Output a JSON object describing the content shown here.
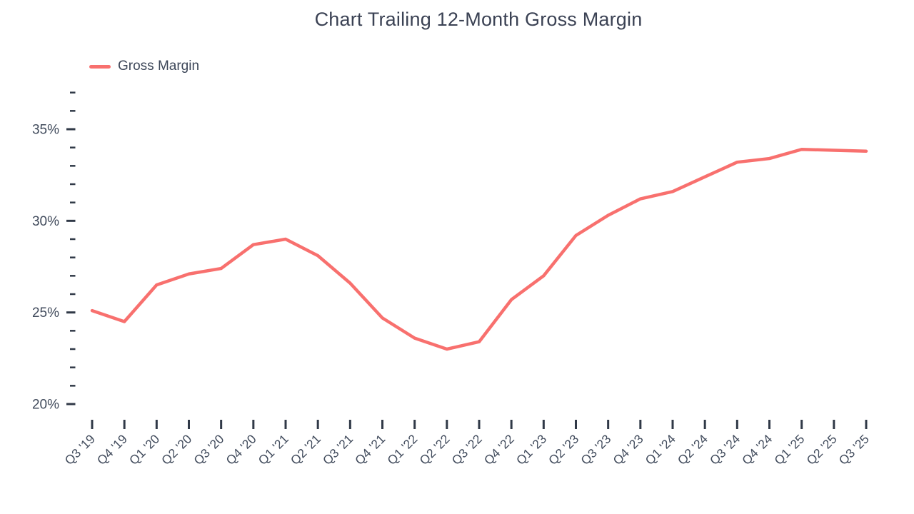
{
  "title": "Chart Trailing 12-Month Gross Margin",
  "legend": {
    "label": "Gross Margin"
  },
  "colors": {
    "line": "#F8706E",
    "title_text": "#3B4254",
    "axis_text": "#414B5C",
    "tick": "#303947"
  },
  "y_axis": {
    "unit": "%",
    "labeled_ticks": [
      "20%",
      "25%",
      "30%",
      "35%"
    ],
    "minor_tick_step": 1,
    "major_tick_step": 5,
    "min": 20,
    "max": 37
  },
  "chart_data": {
    "type": "line",
    "title": "Chart Trailing 12-Month Gross Margin",
    "categories": [
      "Q3 '19",
      "Q4 '19",
      "Q1 '20",
      "Q2 '20",
      "Q3 '20",
      "Q4 '20",
      "Q1 '21",
      "Q2 '21",
      "Q3 '21",
      "Q4 '21",
      "Q1 '22",
      "Q2 '22",
      "Q3 '22",
      "Q4 '22",
      "Q1 '23",
      "Q2 '23",
      "Q3 '23",
      "Q4 '23",
      "Q1 '24",
      "Q2 '24",
      "Q3 '24",
      "Q4 '24",
      "Q1 '25",
      "Q2 '25",
      "Q3 '25"
    ],
    "series": [
      {
        "name": "Gross Margin",
        "color": "#F8706E",
        "values": [
          25.1,
          24.5,
          26.5,
          27.1,
          27.4,
          28.7,
          29.0,
          28.1,
          26.6,
          24.7,
          23.6,
          23.0,
          23.4,
          25.7,
          27.0,
          29.2,
          30.3,
          31.2,
          31.6,
          32.4,
          33.2,
          33.4,
          33.9,
          33.85,
          33.8
        ]
      }
    ],
    "xlabel": "",
    "ylabel": "",
    "unit": "%",
    "ylim": [
      20,
      37
    ],
    "y_major_tick_interval": 5,
    "y_minor_tick_interval": 1,
    "grid": false,
    "legend_position": "top-left",
    "x_tick_rotation": -45
  }
}
